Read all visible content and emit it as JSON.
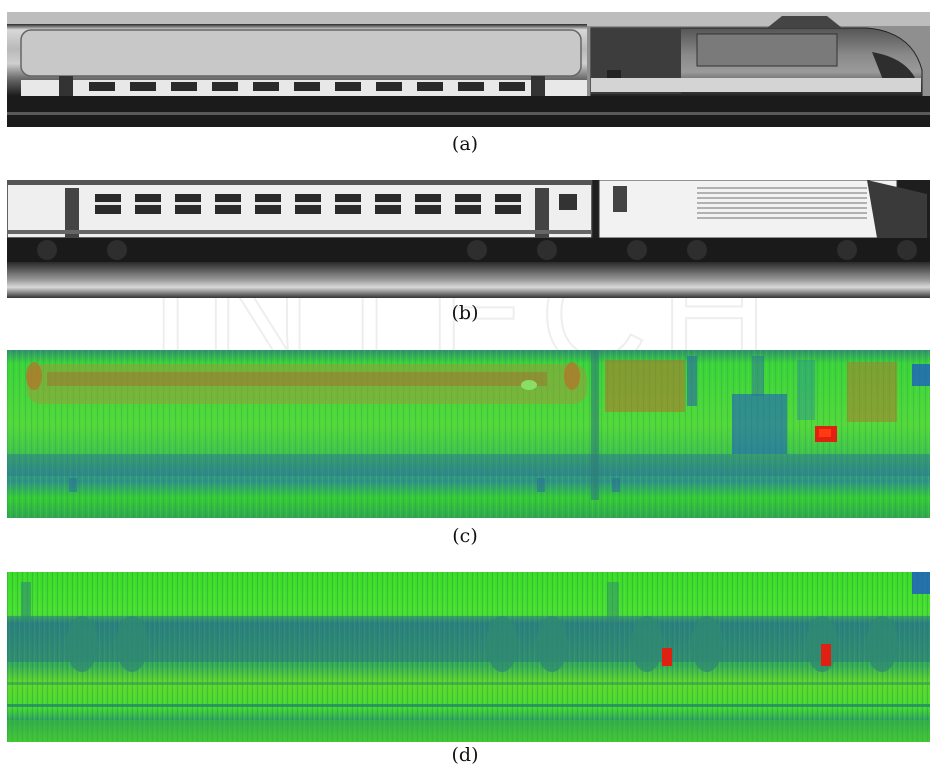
{
  "figure": {
    "panels": [
      {
        "id": "a",
        "caption": "(a)",
        "style": "grayscale"
      },
      {
        "id": "b",
        "caption": "(b)",
        "style": "grayscale"
      },
      {
        "id": "c",
        "caption": "(c)",
        "style": "false-color"
      },
      {
        "id": "d",
        "caption": "(d)",
        "style": "false-color"
      }
    ]
  },
  "watermark": {
    "text": "INTECH"
  },
  "colors": {
    "false_color_low": "#1e5fbf",
    "false_color_mid": "#2fd92f",
    "false_color_high": "#e02010",
    "false_color_warm": "#b8702a"
  }
}
